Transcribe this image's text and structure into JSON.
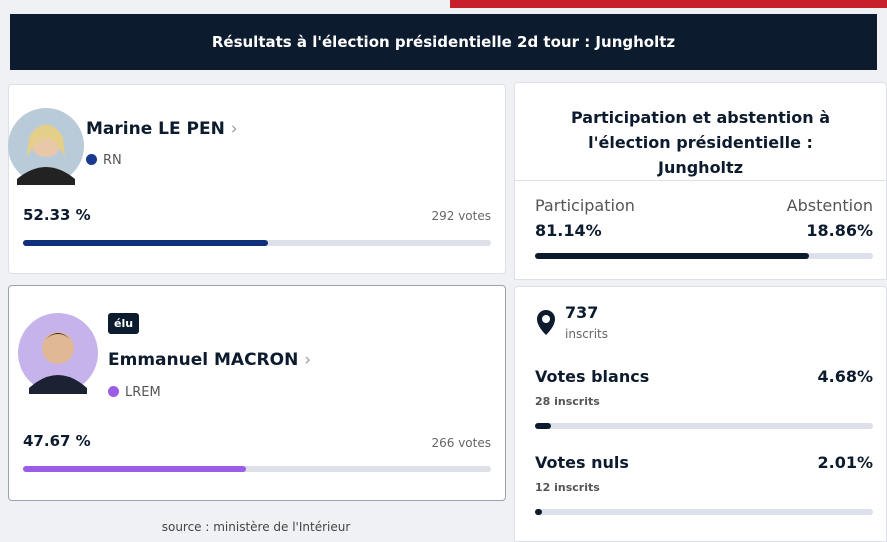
{
  "header": {
    "title": "Résultats à l'élection présidentielle 2d tour : Jungholtz"
  },
  "candidates": [
    {
      "name": "Marine LE PEN",
      "party": "RN",
      "party_color": "#1a3a8f",
      "percent_text": "52.33 %",
      "percent": 52.33,
      "votes": "292 votes",
      "bar_color": "#0f2f7a"
    },
    {
      "badge": "élu",
      "name": "Emmanuel MACRON",
      "party": "LREM",
      "party_color": "#9b5de5",
      "percent_text": "47.67 %",
      "percent": 47.67,
      "votes": "266 votes",
      "bar_color": "#9b5de5"
    }
  ],
  "source": "source : ministère de l'Intérieur",
  "participation": {
    "title": "Participation et abstention à l'élection présidentielle : Jungholtz",
    "participation_label": "Participation",
    "participation_text": "81.14%",
    "participation": 81.14,
    "abstention_label": "Abstention",
    "abstention_text": "18.86%",
    "bar_color": "#0d1b2e"
  },
  "registered": {
    "count": "737",
    "label": "inscrits"
  },
  "blank": {
    "label": "Votes blancs",
    "percent_text": "4.68%",
    "percent": 4.68,
    "detail": "28 inscrits"
  },
  "null": {
    "label": "Votes nuls",
    "percent_text": "2.01%",
    "percent": 2.01,
    "detail": "12 inscrits"
  },
  "bar_range": [
    0,
    100
  ]
}
